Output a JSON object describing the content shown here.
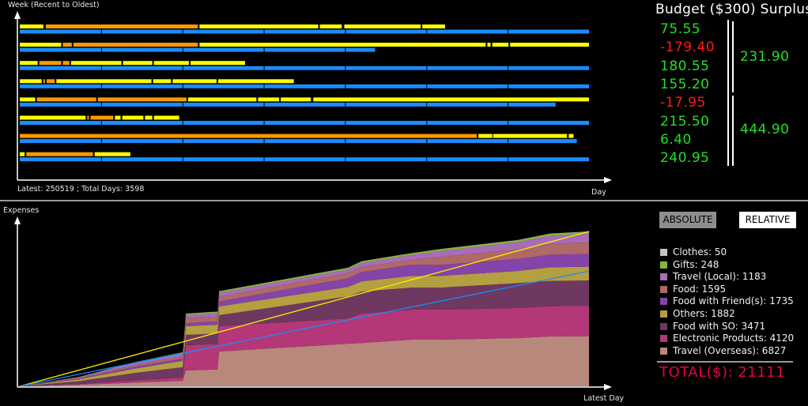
{
  "top_chart": {
    "y_label": "Week (Recent to Oldest)",
    "x_label": "Day",
    "footer": "Latest: 250519 ; Total Days: 3598",
    "colors": {
      "yellow": "#ffff00",
      "orange": "#ff9900",
      "blue": "#1a8cff"
    },
    "weeks": [
      {
        "blue_days": 7,
        "segments": [
          [
            "y",
            0,
            0.29
          ],
          [
            "o",
            0.32,
            2.19
          ],
          [
            "y",
            2.21,
            3.67
          ],
          [
            "y",
            3.69,
            3.96
          ],
          [
            "y",
            3.99,
            4.93
          ],
          [
            "y",
            4.95,
            5.23
          ]
        ]
      },
      {
        "blue_days": 4.37,
        "segments": [
          [
            "y",
            0,
            0.51
          ],
          [
            "o",
            0.53,
            0.64
          ],
          [
            "o",
            0.66,
            2.19
          ],
          [
            "y",
            2.21,
            5.73
          ],
          [
            "y",
            5.75,
            5.79
          ],
          [
            "y",
            5.81,
            6.01
          ],
          [
            "y",
            6.03,
            7
          ]
        ]
      },
      {
        "blue_days": 7,
        "segments": [
          [
            "y",
            0,
            0.22
          ],
          [
            "o",
            0.24,
            0.51
          ],
          [
            "o",
            0.53,
            0.61
          ],
          [
            "y",
            0.63,
            1.25
          ],
          [
            "y",
            1.27,
            1.63
          ],
          [
            "y",
            1.65,
            2.08
          ],
          [
            "y",
            2.1,
            2.77
          ]
        ]
      },
      {
        "blue_days": 7,
        "segments": [
          [
            "y",
            0,
            0.27
          ],
          [
            "o",
            0.29,
            0.31
          ],
          [
            "o",
            0.33,
            0.43
          ],
          [
            "y",
            0.45,
            1.62
          ],
          [
            "y",
            1.64,
            1.86
          ],
          [
            "y",
            1.88,
            2.42
          ],
          [
            "y",
            2.44,
            3.37
          ]
        ]
      },
      {
        "blue_days": 6.59,
        "segments": [
          [
            "y",
            0,
            0.19
          ],
          [
            "o",
            0.21,
            0.94
          ],
          [
            "o",
            0.96,
            2.05
          ],
          [
            "y",
            2.07,
            2.91
          ],
          [
            "y",
            2.93,
            3.19
          ],
          [
            "y",
            3.21,
            3.58
          ],
          [
            "y",
            3.61,
            7
          ]
        ]
      },
      {
        "blue_days": 7,
        "segments": [
          [
            "y",
            0,
            0.81
          ],
          [
            "o",
            0.83,
            0.85
          ],
          [
            "o",
            0.87,
            1.15
          ],
          [
            "y",
            1.17,
            1.24
          ],
          [
            "y",
            1.26,
            1.52
          ],
          [
            "y",
            1.54,
            1.63
          ],
          [
            "y",
            1.65,
            1.96
          ]
        ]
      },
      {
        "blue_days": 6.85,
        "segments": [
          [
            "o",
            0,
            5.62
          ],
          [
            "y",
            5.64,
            5.81
          ],
          [
            "y",
            5.82,
            6.73
          ],
          [
            "y",
            6.75,
            6.81
          ]
        ]
      },
      {
        "blue_days": 7,
        "segments": [
          [
            "y",
            0,
            0.06
          ],
          [
            "o",
            0.08,
            0.9
          ],
          [
            "y",
            0.92,
            1.36
          ]
        ]
      }
    ]
  },
  "budget": {
    "title": "Budget ($300) Surplus",
    "weekly": [
      {
        "value": "75.55",
        "color": "#22e022"
      },
      {
        "value": "-179.40",
        "color": "#ff1a1a"
      },
      {
        "value": "180.55",
        "color": "#22e022"
      },
      {
        "value": "155.20",
        "color": "#22e022"
      },
      {
        "value": "-17.95",
        "color": "#ff1a1a"
      },
      {
        "value": "215.50",
        "color": "#22e022"
      },
      {
        "value": "6.40",
        "color": "#22e022"
      },
      {
        "value": "240.95",
        "color": "#22e022"
      }
    ],
    "groups": [
      "231.90",
      "444.90"
    ]
  },
  "bottom_chart": {
    "y_label": "Expenses",
    "x_label": "Latest Day",
    "buttons": {
      "absolute": "ABSOLUTE",
      "relative": "RELATIVE"
    },
    "total_label": "TOTAL($): 21111",
    "total_color": "#e8004a",
    "legend": [
      {
        "label": "Clothes: 50",
        "color": "#c4c4bc"
      },
      {
        "label": "Gifts: 248",
        "color": "#86b83a"
      },
      {
        "label": "Travel (Local): 1183",
        "color": "#a86cb8"
      },
      {
        "label": "Food: 1595",
        "color": "#b06868"
      },
      {
        "label": "Food with Friend(s): 1735",
        "color": "#8444a8"
      },
      {
        "label": "Others: 1882",
        "color": "#b4a040"
      },
      {
        "label": "Food with SO: 3471",
        "color": "#6e3860"
      },
      {
        "label": "Electronic Products: 4120",
        "color": "#b43878"
      },
      {
        "label": "Travel (Overseas): 6827",
        "color": "#b8887c"
      }
    ]
  },
  "chart_data": {
    "type": "area",
    "stacked": true,
    "xlabel": "Latest Day",
    "ylabel": "Expenses",
    "xlim": [
      0,
      3598
    ],
    "ylim": [
      0,
      21111
    ],
    "stack_order": [
      "Travel (Overseas)",
      "Electronic Products",
      "Food with SO",
      "Others",
      "Food with Friend(s)",
      "Food",
      "Travel (Local)",
      "Gifts",
      "Clothes"
    ],
    "x": [
      0,
      375,
      725,
      1030,
      1050,
      1250,
      1260,
      2075,
      2160,
      2475,
      2660,
      3150,
      3350,
      3598
    ],
    "series": [
      {
        "name": "Travel (Overseas)",
        "values": [
          0,
          200,
          500,
          750,
          2150,
          2300,
          4740,
          5800,
          5900,
          6350,
          6350,
          6570,
          6800,
          6827
        ]
      },
      {
        "name": "Electronic Products",
        "values": [
          0,
          100,
          300,
          450,
          3450,
          3450,
          3450,
          3450,
          4000,
          4100,
          4100,
          4100,
          4120,
          4120
        ]
      },
      {
        "name": "Food with SO",
        "values": [
          0,
          400,
          1000,
          1400,
          1400,
          1450,
          1500,
          3000,
          3000,
          3000,
          3000,
          3400,
          3450,
          3471
        ]
      },
      {
        "name": "Others",
        "values": [
          0,
          250,
          600,
          860,
          1180,
          1200,
          1200,
          1300,
          1400,
          1600,
          1600,
          1650,
          1850,
          1882
        ]
      },
      {
        "name": "Food with Friend(s)",
        "values": [
          0,
          100,
          250,
          320,
          430,
          450,
          650,
          1180,
          1250,
          1500,
          1500,
          1650,
          1700,
          1735
        ]
      },
      {
        "name": "Food",
        "values": [
          0,
          100,
          250,
          320,
          650,
          660,
          660,
          700,
          700,
          700,
          1100,
          1300,
          1500,
          1595
        ]
      },
      {
        "name": "Travel (Local)",
        "values": [
          0,
          100,
          300,
          430,
          430,
          450,
          540,
          500,
          550,
          650,
          800,
          1000,
          1100,
          1183
        ]
      },
      {
        "name": "Gifts",
        "values": [
          0,
          30,
          60,
          100,
          200,
          200,
          200,
          210,
          210,
          220,
          220,
          240,
          245,
          248
        ]
      },
      {
        "name": "Clothes",
        "values": [
          0,
          0,
          10,
          20,
          20,
          25,
          25,
          30,
          30,
          35,
          40,
          45,
          48,
          50
        ]
      }
    ],
    "lines": [
      {
        "color": "#ffee00",
        "from": [
          0,
          0
        ],
        "to": [
          3598,
          21111
        ]
      },
      {
        "color": "#1a8cff",
        "from": [
          0,
          0
        ],
        "to": [
          3598,
          15700
        ]
      }
    ]
  }
}
